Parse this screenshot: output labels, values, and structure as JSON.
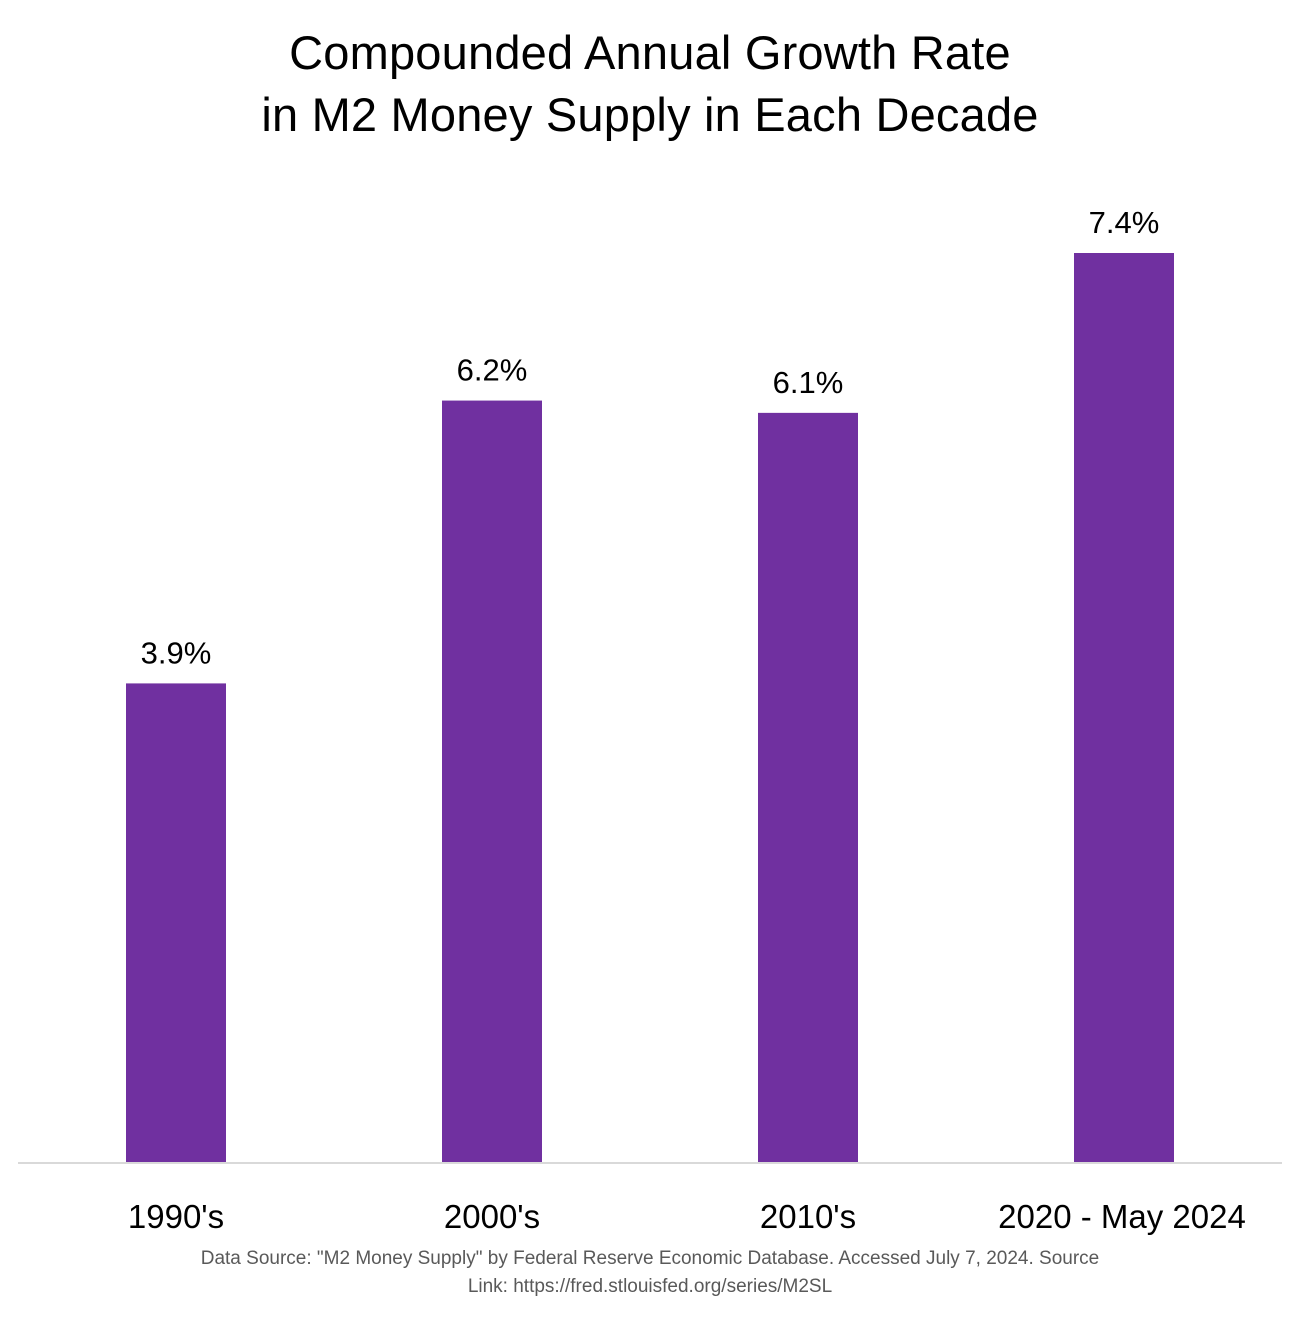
{
  "chart_data": {
    "type": "bar",
    "title_lines": [
      "Compounded Annual Growth Rate",
      "in M2 Money Supply in Each Decade"
    ],
    "categories": [
      "1990's",
      "2000's",
      "2010's",
      "2020 - May 2024"
    ],
    "values": [
      3.9,
      6.2,
      6.1,
      7.4
    ],
    "data_labels": [
      "3.9%",
      "6.2%",
      "6.1%",
      "7.4%"
    ],
    "unit": "%",
    "xlabel": "",
    "ylabel": "",
    "ylim": [
      0,
      7.4
    ],
    "grid": false,
    "legend": "none",
    "bar_color": "#7030A0",
    "axis_color": "#D9D9D9"
  },
  "source_note": {
    "line1": "Data Source: \"M2 Money Supply\" by Federal Reserve Economic Database. Accessed July 7, 2024. Source",
    "line2": "Link: https://fred.stlouisfed.org/series/M2SL"
  }
}
